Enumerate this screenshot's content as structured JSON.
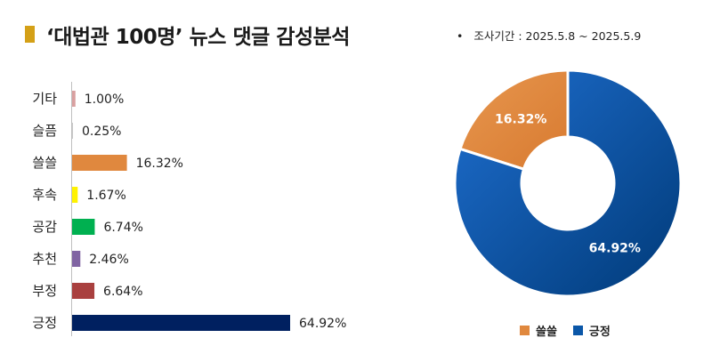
{
  "title": "‘대법관 100명’ 뉴스 댓글 감성분석",
  "period": {
    "bullet": "•",
    "text": "조사기간 : 2025.5.8 ~ 2025.5.9"
  },
  "colors": {
    "title_mark": "#D4A017"
  },
  "chart_data": [
    {
      "type": "bar",
      "orientation": "horizontal",
      "categories": [
        "기타",
        "슬픔",
        "쓸쓸",
        "후속",
        "공감",
        "추천",
        "부정",
        "긍정"
      ],
      "values": [
        1.0,
        0.25,
        16.32,
        1.67,
        6.74,
        2.46,
        6.64,
        64.92
      ],
      "value_labels": [
        "1.00%",
        "0.25%",
        "16.32%",
        "1.67%",
        "6.74%",
        "2.46%",
        "6.64%",
        "64.92%"
      ],
      "colors": [
        "#D9A0A0",
        "#C7C7C7",
        "#E0883E",
        "#FFF200",
        "#00B050",
        "#8064A2",
        "#A9403F",
        "#002060"
      ],
      "unit": "%",
      "xlim": [
        0,
        64.92
      ],
      "grid": false
    },
    {
      "type": "pie",
      "style": "donut",
      "labels": [
        "쓸쓸",
        "긍정"
      ],
      "values": [
        16.32,
        64.92
      ],
      "value_labels": [
        "16.32%",
        "64.92%"
      ],
      "colors": [
        "#E0883E",
        "#0B57A8"
      ],
      "legend": "bottom"
    }
  ]
}
